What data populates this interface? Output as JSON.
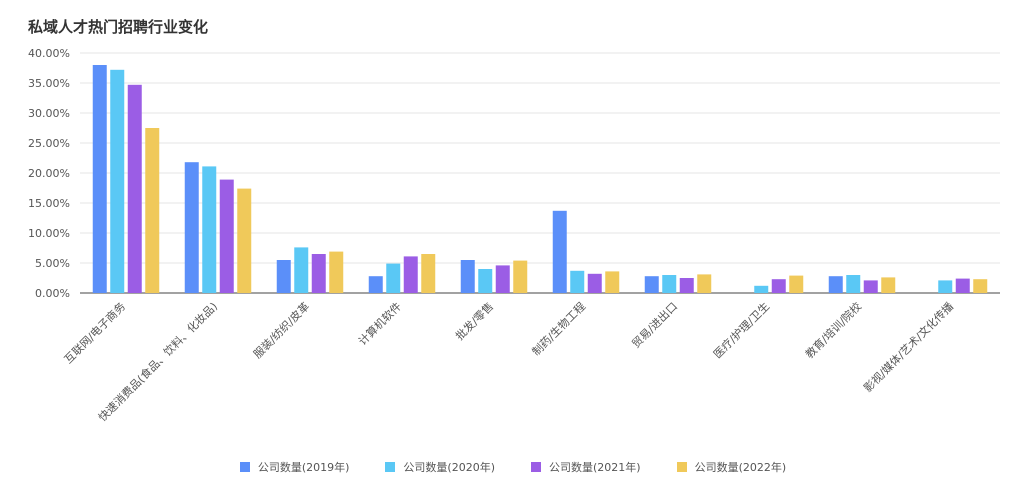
{
  "chart_data": {
    "type": "bar",
    "title": "私域人才热门招聘行业变化",
    "categories": [
      "互联网/电子商务",
      "快速消费品(食品、饮料、化妆品)",
      "服装/纺织/皮革",
      "计算机软件",
      "批发/零售",
      "制药/生物工程",
      "贸易/进出口",
      "医疗/护理/卫生",
      "教育/培训/院校",
      "影视/媒体/艺术/文化传播"
    ],
    "series": [
      {
        "name": "公司数量(2019年)",
        "color": "#5b8ff9",
        "values": [
          38.0,
          21.8,
          5.5,
          2.8,
          5.5,
          13.7,
          2.8,
          0,
          2.8,
          0
        ]
      },
      {
        "name": "公司数量(2020年)",
        "color": "#5ac8f5",
        "values": [
          37.2,
          21.1,
          7.6,
          4.9,
          4.0,
          3.7,
          3.0,
          1.2,
          3.0,
          2.1
        ]
      },
      {
        "name": "公司数量(2021年)",
        "color": "#9b5de5",
        "values": [
          34.7,
          18.9,
          6.5,
          6.1,
          4.6,
          3.2,
          2.5,
          2.3,
          2.1,
          2.4
        ]
      },
      {
        "name": "公司数量(2022年)",
        "color": "#f0c95a",
        "values": [
          27.5,
          17.4,
          6.9,
          6.5,
          5.4,
          3.6,
          3.1,
          2.9,
          2.6,
          2.3
        ]
      }
    ],
    "ylim": [
      0,
      40
    ],
    "yticks": [
      "0.00%",
      "5.00%",
      "10.00%",
      "15.00%",
      "20.00%",
      "25.00%",
      "30.00%",
      "35.00%",
      "40.00%"
    ],
    "grid": true,
    "legend_position": "bottom"
  }
}
